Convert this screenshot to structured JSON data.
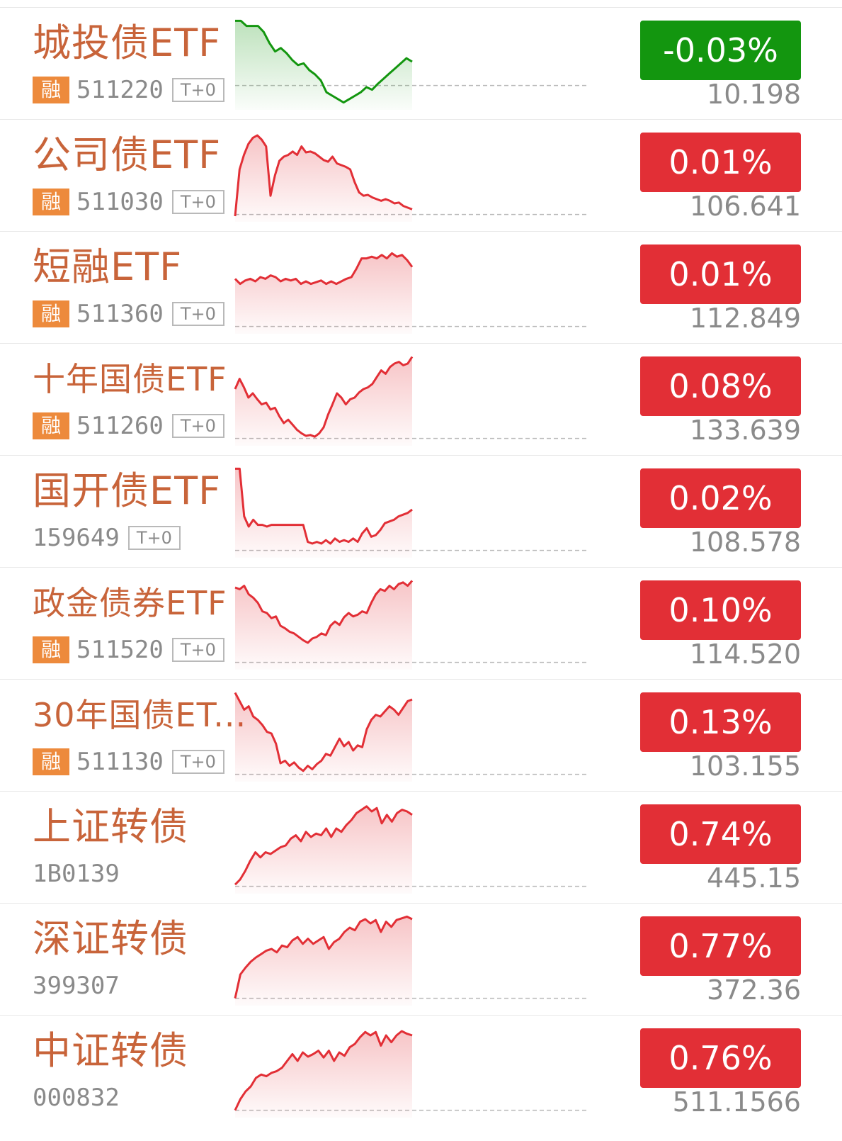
{
  "colors": {
    "up": "#e22f36",
    "down": "#13960f",
    "name": "#c8643a",
    "badge": "#ed8a3c"
  },
  "rows": [
    {
      "name": "城投债ETF",
      "code": "511220",
      "rong": "融",
      "t0": "T+0",
      "change": "-0.03%",
      "price": "10.198",
      "dir": "down",
      "base": 0.22,
      "spark": [
        0.98,
        0.98,
        0.92,
        0.92,
        0.92,
        0.85,
        0.72,
        0.62,
        0.66,
        0.6,
        0.52,
        0.46,
        0.48,
        0.4,
        0.35,
        0.28,
        0.14,
        0.1,
        0.06,
        0.02,
        0.06,
        0.1,
        0.14,
        0.2,
        0.17,
        0.24,
        0.3,
        0.36,
        0.42,
        0.48,
        0.54,
        0.5
      ]
    },
    {
      "name": "公司债ETF",
      "code": "511030",
      "rong": "融",
      "t0": "T+0",
      "change": "0.01%",
      "price": "106.641",
      "dir": "up",
      "base": 0.02,
      "spark": [
        0.0,
        0.55,
        0.72,
        0.85,
        0.92,
        0.95,
        0.9,
        0.82,
        0.24,
        0.48,
        0.65,
        0.7,
        0.72,
        0.76,
        0.72,
        0.82,
        0.75,
        0.76,
        0.74,
        0.7,
        0.66,
        0.64,
        0.7,
        0.62,
        0.6,
        0.58,
        0.55,
        0.4,
        0.28,
        0.24,
        0.25,
        0.22,
        0.2,
        0.18,
        0.2,
        0.18,
        0.15,
        0.16,
        0.12,
        0.1,
        0.08
      ]
    },
    {
      "name": "短融ETF",
      "code": "511360",
      "rong": "融",
      "t0": "T+0",
      "change": "0.01%",
      "price": "112.849",
      "dir": "up",
      "base": 0.02,
      "spark": [
        0.58,
        0.52,
        0.56,
        0.58,
        0.55,
        0.6,
        0.58,
        0.62,
        0.6,
        0.55,
        0.58,
        0.56,
        0.58,
        0.52,
        0.55,
        0.52,
        0.54,
        0.56,
        0.52,
        0.55,
        0.52,
        0.55,
        0.58,
        0.6,
        0.7,
        0.82,
        0.82,
        0.84,
        0.82,
        0.86,
        0.82,
        0.88,
        0.84,
        0.86,
        0.8,
        0.72
      ]
    },
    {
      "name": "十年国债ETF",
      "code": "511260",
      "rong": "融",
      "t0": "T+0",
      "change": "0.08%",
      "price": "133.639",
      "dir": "up",
      "base": 0.02,
      "spark": [
        0.6,
        0.72,
        0.62,
        0.5,
        0.55,
        0.48,
        0.42,
        0.44,
        0.36,
        0.38,
        0.28,
        0.2,
        0.24,
        0.18,
        0.12,
        0.08,
        0.05,
        0.06,
        0.04,
        0.08,
        0.15,
        0.3,
        0.42,
        0.55,
        0.5,
        0.42,
        0.48,
        0.5,
        0.56,
        0.6,
        0.62,
        0.66,
        0.74,
        0.82,
        0.78,
        0.86,
        0.9,
        0.92,
        0.88,
        0.9,
        0.98
      ]
    },
    {
      "name": "国开债ETF",
      "code": "159649",
      "rong": "",
      "t0": "T+0",
      "change": "0.02%",
      "price": "108.578",
      "dir": "up",
      "base": 0.02,
      "spark": [
        0.98,
        0.98,
        0.42,
        0.3,
        0.38,
        0.32,
        0.32,
        0.3,
        0.32,
        0.32,
        0.32,
        0.32,
        0.32,
        0.32,
        0.32,
        0.32,
        0.12,
        0.1,
        0.12,
        0.1,
        0.14,
        0.1,
        0.16,
        0.12,
        0.14,
        0.12,
        0.16,
        0.12,
        0.22,
        0.28,
        0.18,
        0.2,
        0.26,
        0.34,
        0.36,
        0.38,
        0.42,
        0.44,
        0.46,
        0.5
      ]
    },
    {
      "name": "政金债券ETF",
      "code": "511520",
      "rong": "融",
      "t0": "T+0",
      "change": "0.10%",
      "price": "114.520",
      "dir": "up",
      "base": 0.02,
      "spark": [
        0.9,
        0.88,
        0.92,
        0.82,
        0.78,
        0.72,
        0.62,
        0.6,
        0.54,
        0.56,
        0.45,
        0.42,
        0.38,
        0.36,
        0.32,
        0.28,
        0.25,
        0.3,
        0.32,
        0.36,
        0.34,
        0.45,
        0.5,
        0.46,
        0.55,
        0.6,
        0.56,
        0.58,
        0.62,
        0.6,
        0.72,
        0.82,
        0.88,
        0.86,
        0.92,
        0.88,
        0.94,
        0.96,
        0.92,
        0.98
      ]
    },
    {
      "name": "30年国债ET...",
      "code": "511130",
      "rong": "融",
      "t0": "T+0",
      "change": "0.13%",
      "price": "103.155",
      "dir": "up",
      "base": 0.02,
      "spark": [
        0.98,
        0.88,
        0.78,
        0.82,
        0.7,
        0.66,
        0.6,
        0.52,
        0.5,
        0.38,
        0.15,
        0.18,
        0.12,
        0.16,
        0.1,
        0.06,
        0.12,
        0.08,
        0.14,
        0.18,
        0.26,
        0.24,
        0.34,
        0.44,
        0.35,
        0.4,
        0.3,
        0.36,
        0.34,
        0.55,
        0.66,
        0.72,
        0.7,
        0.76,
        0.82,
        0.78,
        0.72,
        0.8,
        0.88,
        0.9
      ]
    },
    {
      "name": "上证转债",
      "code": "1B0139",
      "rong": "",
      "t0": "",
      "change": "0.74%",
      "price": "445.15",
      "dir": "up",
      "base": 0.02,
      "spark": [
        0.04,
        0.1,
        0.2,
        0.32,
        0.42,
        0.36,
        0.42,
        0.4,
        0.44,
        0.48,
        0.5,
        0.58,
        0.62,
        0.55,
        0.66,
        0.6,
        0.64,
        0.62,
        0.7,
        0.6,
        0.7,
        0.66,
        0.74,
        0.8,
        0.88,
        0.92,
        0.96,
        0.9,
        0.94,
        0.76,
        0.86,
        0.78,
        0.88,
        0.92,
        0.9,
        0.86
      ]
    },
    {
      "name": "深证转债",
      "code": "399307",
      "rong": "",
      "t0": "",
      "change": "0.77%",
      "price": "372.36",
      "dir": "up",
      "base": 0.02,
      "spark": [
        0.02,
        0.3,
        0.38,
        0.45,
        0.5,
        0.54,
        0.58,
        0.6,
        0.56,
        0.64,
        0.62,
        0.7,
        0.74,
        0.66,
        0.72,
        0.66,
        0.7,
        0.74,
        0.6,
        0.68,
        0.72,
        0.8,
        0.85,
        0.82,
        0.92,
        0.95,
        0.9,
        0.94,
        0.8,
        0.92,
        0.86,
        0.94,
        0.96,
        0.98,
        0.95
      ]
    },
    {
      "name": "中证转债",
      "code": "000832",
      "rong": "",
      "t0": "",
      "change": "0.76%",
      "price": "511.1566",
      "dir": "up",
      "base": 0.02,
      "spark": [
        0.02,
        0.15,
        0.24,
        0.3,
        0.4,
        0.44,
        0.42,
        0.46,
        0.48,
        0.52,
        0.6,
        0.68,
        0.6,
        0.7,
        0.65,
        0.68,
        0.72,
        0.64,
        0.72,
        0.6,
        0.7,
        0.66,
        0.76,
        0.8,
        0.88,
        0.94,
        0.9,
        0.94,
        0.78,
        0.9,
        0.82,
        0.9,
        0.95,
        0.92,
        0.9
      ]
    }
  ]
}
